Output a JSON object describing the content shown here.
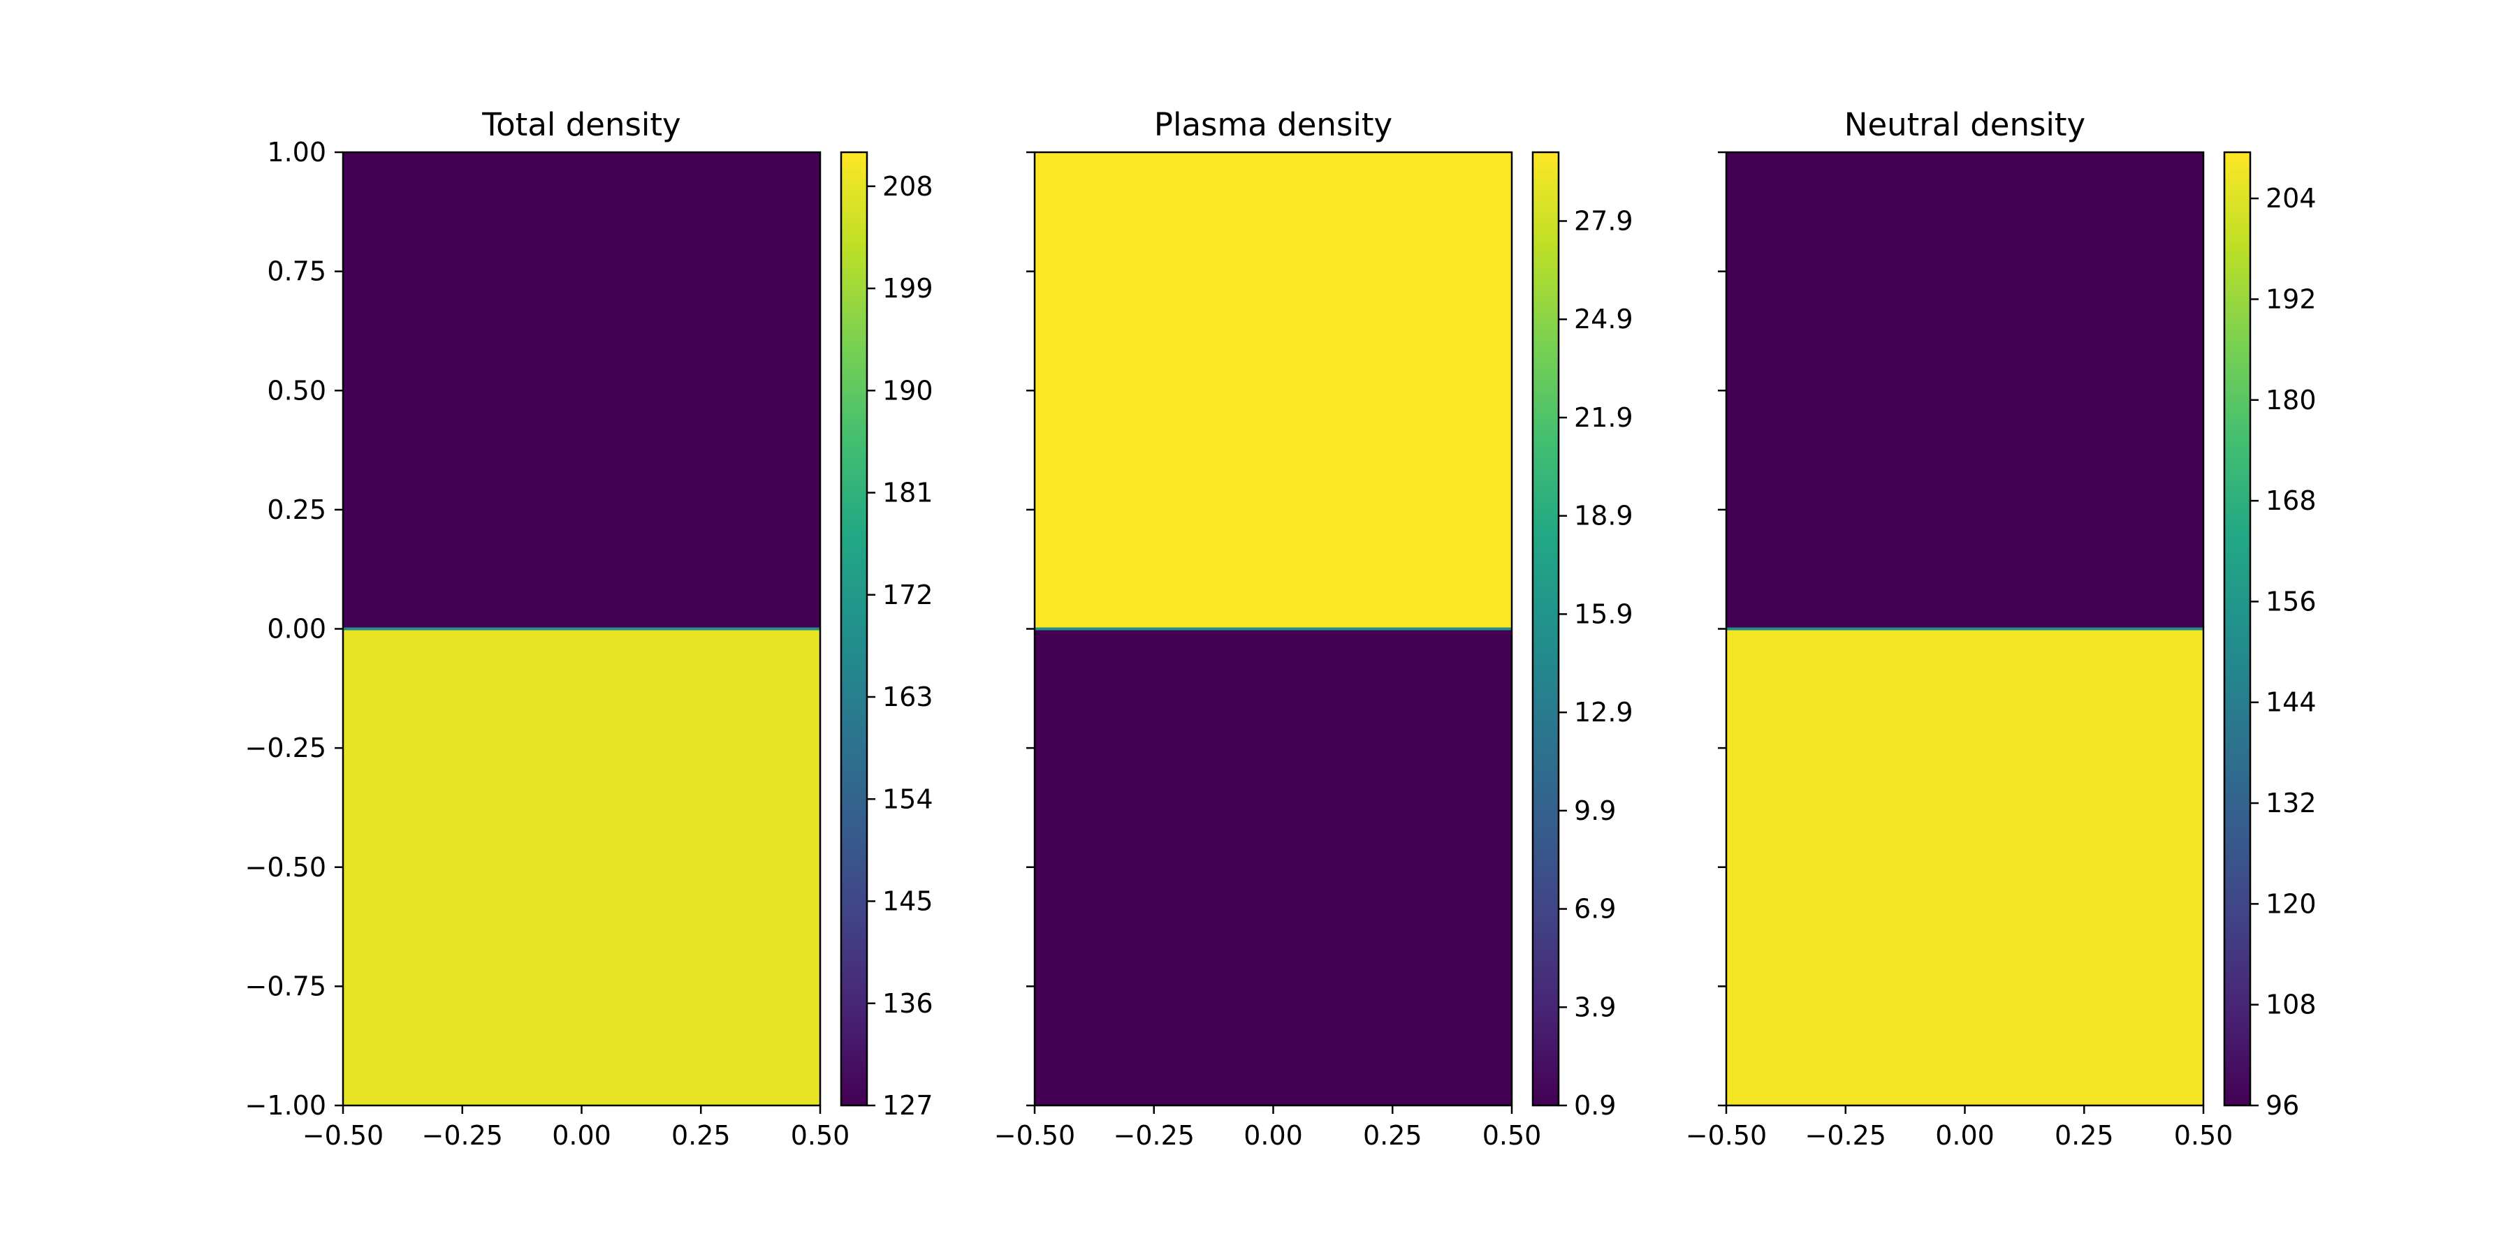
{
  "chart_data": [
    {
      "type": "heatmap",
      "title": "Total density",
      "xlabel": "",
      "ylabel": "",
      "xlim": [
        -0.5,
        0.5
      ],
      "ylim": [
        -1.0,
        1.0
      ],
      "xticks": [
        "−0.50",
        "−0.25",
        "0.00",
        "0.25",
        "0.50"
      ],
      "yticks": [
        "1.00",
        "0.75",
        "0.50",
        "0.25",
        "0.00",
        "−0.25",
        "−0.50",
        "−0.75",
        "−1.00"
      ],
      "yticks_visible": true,
      "regions": [
        {
          "y_range": [
            0.0,
            1.0
          ],
          "value": 127
        },
        {
          "y_range": [
            -1.0,
            0.0
          ],
          "value": 208
        }
      ],
      "colorbar": {
        "min": 127,
        "max": 211,
        "ticks": [
          "208",
          "199",
          "190",
          "181",
          "172",
          "163",
          "154",
          "145",
          "136",
          "127"
        ],
        "tick_values": [
          208,
          199,
          190,
          181,
          172,
          163,
          154,
          145,
          136,
          127
        ]
      },
      "colormap": "viridis"
    },
    {
      "type": "heatmap",
      "title": "Plasma density",
      "xlabel": "",
      "ylabel": "",
      "xlim": [
        -0.5,
        0.5
      ],
      "ylim": [
        -1.0,
        1.0
      ],
      "xticks": [
        "−0.50",
        "−0.25",
        "0.00",
        "0.25",
        "0.50"
      ],
      "yticks": [],
      "yticks_visible": false,
      "regions": [
        {
          "y_range": [
            0.0,
            1.0
          ],
          "value": 30.0
        },
        {
          "y_range": [
            -1.0,
            0.0
          ],
          "value": 0.9
        }
      ],
      "colorbar": {
        "min": 0.9,
        "max": 30.0,
        "ticks": [
          "27.9",
          "24.9",
          "21.9",
          "18.9",
          "15.9",
          "12.9",
          "9.9",
          "6.9",
          "3.9",
          "0.9"
        ],
        "tick_values": [
          27.9,
          24.9,
          21.9,
          18.9,
          15.9,
          12.9,
          9.9,
          6.9,
          3.9,
          0.9
        ]
      },
      "colormap": "viridis"
    },
    {
      "type": "heatmap",
      "title": "Neutral density",
      "xlabel": "",
      "ylabel": "",
      "xlim": [
        -0.5,
        0.5
      ],
      "ylim": [
        -1.0,
        1.0
      ],
      "xticks": [
        "−0.50",
        "−0.25",
        "0.00",
        "0.25",
        "0.50"
      ],
      "yticks": [],
      "yticks_visible": false,
      "regions": [
        {
          "y_range": [
            0.0,
            1.0
          ],
          "value": 96
        },
        {
          "y_range": [
            -1.0,
            0.0
          ],
          "value": 208
        }
      ],
      "colorbar": {
        "min": 96,
        "max": 209.5,
        "ticks": [
          "204",
          "192",
          "180",
          "168",
          "156",
          "144",
          "132",
          "120",
          "108",
          "96"
        ],
        "tick_values": [
          204,
          192,
          180,
          168,
          156,
          144,
          132,
          120,
          108,
          96
        ]
      },
      "colormap": "viridis"
    }
  ]
}
